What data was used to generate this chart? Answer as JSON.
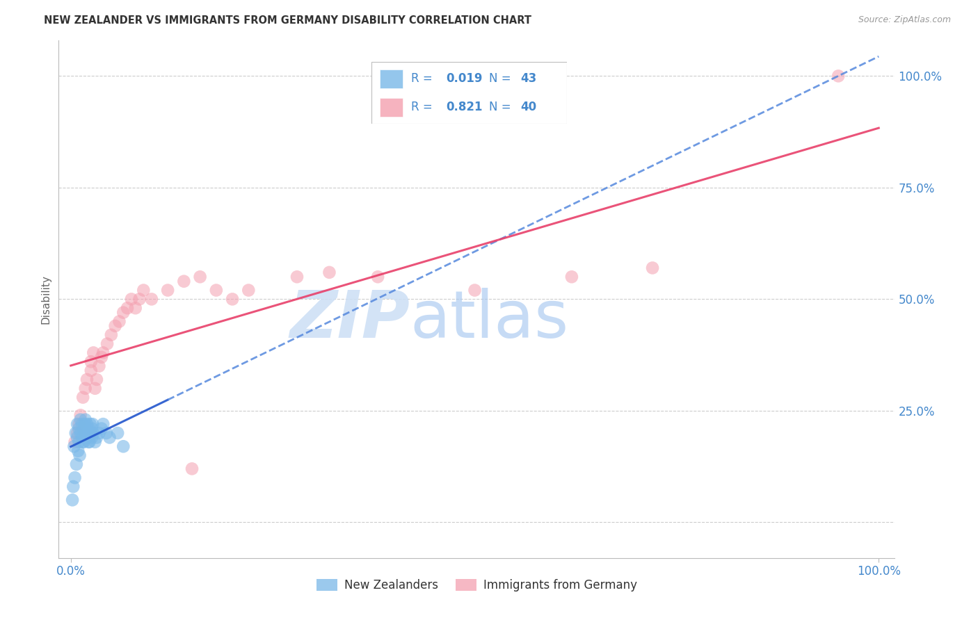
{
  "title": "NEW ZEALANDER VS IMMIGRANTS FROM GERMANY DISABILITY CORRELATION CHART",
  "source": "Source: ZipAtlas.com",
  "ylabel": "Disability",
  "xlim": [
    0.0,
    1.0
  ],
  "ylim": [
    0.0,
    1.0
  ],
  "y_tick_labels": [
    "100.0%",
    "75.0%",
    "50.0%",
    "25.0%"
  ],
  "y_tick_positions": [
    1.0,
    0.75,
    0.5,
    0.25
  ],
  "x_tick_labels": [
    "0.0%",
    "100.0%"
  ],
  "x_tick_positions": [
    0.0,
    1.0
  ],
  "legend_labels": [
    "New Zealanders",
    "Immigrants from Germany"
  ],
  "nz_R": 0.019,
  "nz_N": 43,
  "ger_R": 0.821,
  "ger_N": 40,
  "nz_color": "#7ab8e8",
  "ger_color": "#f4a0b0",
  "nz_line_solid_color": "#2255cc",
  "nz_line_dash_color": "#5588dd",
  "ger_line_color": "#e8406a",
  "watermark_zip_color": "#ccdff5",
  "watermark_atlas_color": "#a8c8f0",
  "background_color": "#ffffff",
  "grid_color": "#cccccc",
  "tick_color": "#4488cc",
  "title_color": "#333333",
  "source_color": "#999999",
  "ylabel_color": "#666666",
  "legend_box_edge": "#bbbbbb",
  "nz_seed_x": [
    0.004,
    0.006,
    0.008,
    0.008,
    0.01,
    0.01,
    0.012,
    0.012,
    0.014,
    0.014,
    0.016,
    0.016,
    0.018,
    0.018,
    0.02,
    0.02,
    0.022,
    0.022,
    0.024,
    0.024,
    0.026,
    0.026,
    0.028,
    0.03,
    0.032,
    0.035,
    0.038,
    0.04,
    0.044,
    0.048,
    0.002,
    0.003,
    0.005,
    0.007,
    0.009,
    0.011,
    0.015,
    0.017,
    0.019,
    0.023,
    0.027,
    0.058,
    0.065
  ],
  "nz_seed_y": [
    0.17,
    0.2,
    0.22,
    0.19,
    0.21,
    0.18,
    0.23,
    0.2,
    0.19,
    0.22,
    0.21,
    0.18,
    0.2,
    0.23,
    0.19,
    0.22,
    0.21,
    0.18,
    0.2,
    0.22,
    0.19,
    0.21,
    0.2,
    0.18,
    0.19,
    0.2,
    0.21,
    0.22,
    0.2,
    0.19,
    0.05,
    0.08,
    0.1,
    0.13,
    0.16,
    0.15,
    0.18,
    0.22,
    0.2,
    0.18,
    0.22,
    0.2,
    0.17
  ],
  "ger_seed_x": [
    0.005,
    0.008,
    0.01,
    0.012,
    0.015,
    0.018,
    0.02,
    0.025,
    0.025,
    0.028,
    0.03,
    0.032,
    0.035,
    0.038,
    0.04,
    0.045,
    0.05,
    0.055,
    0.06,
    0.065,
    0.07,
    0.075,
    0.08,
    0.085,
    0.09,
    0.1,
    0.12,
    0.14,
    0.16,
    0.18,
    0.2,
    0.22,
    0.28,
    0.32,
    0.38,
    0.5,
    0.62,
    0.72,
    0.95,
    0.15
  ],
  "ger_seed_y": [
    0.18,
    0.2,
    0.22,
    0.24,
    0.28,
    0.3,
    0.32,
    0.34,
    0.36,
    0.38,
    0.3,
    0.32,
    0.35,
    0.37,
    0.38,
    0.4,
    0.42,
    0.44,
    0.45,
    0.47,
    0.48,
    0.5,
    0.48,
    0.5,
    0.52,
    0.5,
    0.52,
    0.54,
    0.55,
    0.52,
    0.5,
    0.52,
    0.55,
    0.56,
    0.55,
    0.52,
    0.55,
    0.57,
    1.0,
    0.12
  ]
}
